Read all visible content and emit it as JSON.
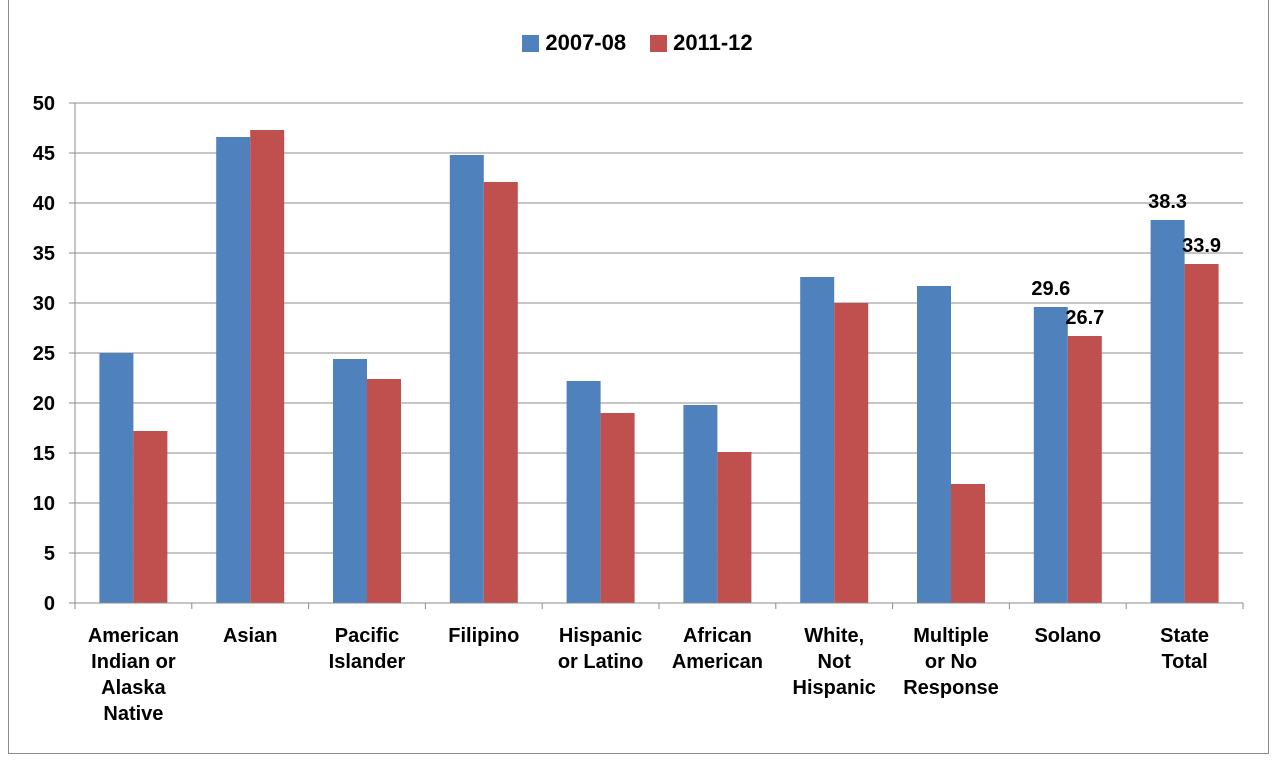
{
  "chart_data": {
    "type": "bar",
    "title": "",
    "categories": [
      [
        "American",
        "Indian or",
        "Alaska",
        "Native"
      ],
      [
        "Asian"
      ],
      [
        "Pacific",
        "Islander"
      ],
      [
        "Filipino"
      ],
      [
        "Hispanic",
        "or Latino"
      ],
      [
        "African",
        "American"
      ],
      [
        "White,",
        "Not",
        "Hispanic"
      ],
      [
        "Multiple",
        "or No",
        "Response"
      ],
      [
        "Solano"
      ],
      [
        "State",
        "Total"
      ]
    ],
    "series": [
      {
        "name": "2007-08",
        "color": "#4f81bd",
        "values": [
          25.0,
          46.6,
          24.4,
          44.8,
          22.2,
          19.8,
          32.6,
          31.7,
          29.6,
          38.3
        ]
      },
      {
        "name": "2011-12",
        "color": "#c0504d",
        "values": [
          17.2,
          47.3,
          22.4,
          42.1,
          19.0,
          15.1,
          30.0,
          11.9,
          26.7,
          33.9
        ]
      }
    ],
    "data_labels": [
      {
        "series": 0,
        "index": 8,
        "text": "29.6"
      },
      {
        "series": 1,
        "index": 8,
        "text": "26.7"
      },
      {
        "series": 0,
        "index": 9,
        "text": "38.3"
      },
      {
        "series": 1,
        "index": 9,
        "text": "33.9"
      }
    ],
    "ylim": [
      0,
      50
    ],
    "yticks": [
      0,
      5,
      10,
      15,
      20,
      25,
      30,
      35,
      40,
      45,
      50
    ],
    "grid": true,
    "legend_position": "top"
  }
}
